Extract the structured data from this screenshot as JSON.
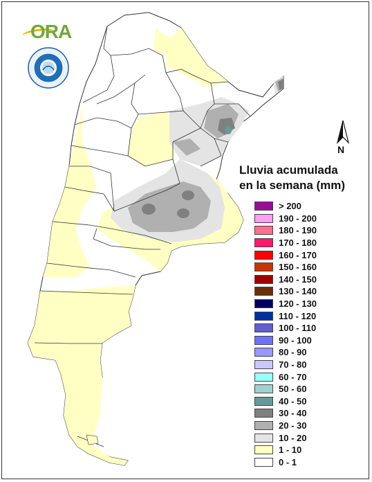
{
  "title": {
    "line1": "Lluvia acumulada",
    "line2": "en la semana (mm)"
  },
  "logos": {
    "ora_text": "ORA"
  },
  "north": {
    "label": "N"
  },
  "legend": [
    {
      "label": "> 200",
      "color": "#9c0a9c"
    },
    {
      "label": "190 - 200",
      "color": "#ff9ef2"
    },
    {
      "label": "180 - 190",
      "color": "#ff6f8f"
    },
    {
      "label": "170 - 180",
      "color": "#ff1a6e"
    },
    {
      "label": "160 - 170",
      "color": "#ff0000"
    },
    {
      "label": "150 - 160",
      "color": "#cc3300"
    },
    {
      "label": "140 - 150",
      "color": "#a00000"
    },
    {
      "label": "130 - 140",
      "color": "#6b2d0a"
    },
    {
      "label": "120 - 130",
      "color": "#000060"
    },
    {
      "label": "110 - 120",
      "color": "#0030a0"
    },
    {
      "label": "100 - 110",
      "color": "#6060d0"
    },
    {
      "label": "90 - 100",
      "color": "#7070ff"
    },
    {
      "label": "80 - 90",
      "color": "#9898ff"
    },
    {
      "label": "70 - 80",
      "color": "#c8c8ff"
    },
    {
      "label": "60 - 70",
      "color": "#99ffff"
    },
    {
      "label": "50 - 60",
      "color": "#a0d0d0"
    },
    {
      "label": "40 - 50",
      "color": "#669999"
    },
    {
      "label": "30 - 40",
      "color": "#808080"
    },
    {
      "label": "20 - 30",
      "color": "#b0b0b0"
    },
    {
      "label": "10 - 20",
      "color": "#e4e4e4"
    },
    {
      "label": "1 - 10",
      "color": "#ffffc4"
    },
    {
      "label": "0 - 1",
      "color": "#ffffff"
    }
  ]
}
